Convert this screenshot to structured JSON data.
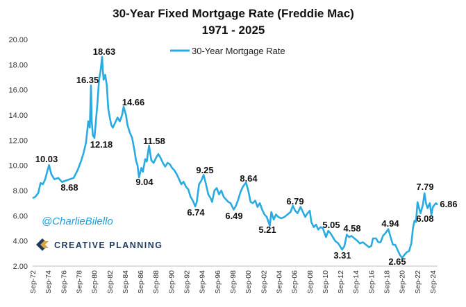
{
  "chart_data": {
    "type": "line",
    "title_line1": "30-Year Fixed Mortgage Rate (Freddie Mac)",
    "title_line2": "1971 - 2025",
    "ylim": [
      2,
      20
    ],
    "xlim": [
      1972.67,
      2025.3
    ],
    "y_ticks": [
      "2.00",
      "4.00",
      "6.00",
      "8.00",
      "10.00",
      "12.00",
      "14.00",
      "16.00",
      "18.00",
      "20.00"
    ],
    "x_ticks": [
      "Sep-72",
      "Sep-74",
      "Sep-76",
      "Sep-78",
      "Sep-80",
      "Sep-82",
      "Sep-84",
      "Sep-86",
      "Sep-88",
      "Sep-90",
      "Sep-92",
      "Sep-94",
      "Sep-96",
      "Sep-98",
      "Sep-00",
      "Sep-02",
      "Sep-04",
      "Sep-06",
      "Sep-08",
      "Sep-10",
      "Sep-12",
      "Sep-14",
      "Sep-16",
      "Sep-18",
      "Sep-20",
      "Sep-22",
      "Sep-24"
    ],
    "legend": "30-Year Mortgage Rate",
    "color": "#29ABE2",
    "series": [
      {
        "name": "30-Year Mortgage Rate",
        "x": [
          1972.67,
          1973.0,
          1973.4,
          1973.7,
          1974.0,
          1974.3,
          1974.6,
          1974.8,
          1975.1,
          1975.5,
          1976.0,
          1976.5,
          1977.0,
          1977.5,
          1978.0,
          1978.5,
          1979.0,
          1979.3,
          1979.6,
          1979.9,
          1980.1,
          1980.25,
          1980.35,
          1980.5,
          1980.7,
          1980.9,
          1981.1,
          1981.3,
          1981.5,
          1981.7,
          1981.8,
          1981.9,
          1982.1,
          1982.3,
          1982.5,
          1982.7,
          1982.9,
          1983.1,
          1983.4,
          1983.7,
          1984.0,
          1984.3,
          1984.5,
          1984.8,
          1985.0,
          1985.3,
          1985.6,
          1985.9,
          1986.1,
          1986.3,
          1986.5,
          1986.8,
          1987.0,
          1987.3,
          1987.5,
          1987.8,
          1988.1,
          1988.4,
          1988.7,
          1989.0,
          1989.3,
          1989.6,
          1989.9,
          1990.2,
          1990.5,
          1990.8,
          1991.1,
          1991.4,
          1991.7,
          1992.0,
          1992.3,
          1992.6,
          1992.9,
          1993.2,
          1993.5,
          1993.8,
          1994.0,
          1994.3,
          1994.6,
          1994.9,
          1995.2,
          1995.5,
          1995.8,
          1996.0,
          1996.3,
          1996.6,
          1996.9,
          1997.2,
          1997.5,
          1997.8,
          1998.1,
          1998.4,
          1998.8,
          1999.1,
          1999.4,
          1999.7,
          2000.0,
          2000.4,
          2000.7,
          2001.0,
          2001.3,
          2001.6,
          2001.9,
          2002.2,
          2002.5,
          2002.8,
          2003.1,
          2003.5,
          2003.7,
          2004.0,
          2004.3,
          2004.6,
          2005.0,
          2005.4,
          2005.8,
          2006.2,
          2006.5,
          2006.8,
          2007.1,
          2007.5,
          2007.8,
          2008.1,
          2008.4,
          2008.7,
          2008.9,
          2009.2,
          2009.5,
          2009.8,
          2010.1,
          2010.4,
          2010.8,
          2011.1,
          2011.4,
          2011.7,
          2012.0,
          2012.4,
          2012.9,
          2013.2,
          2013.5,
          2013.8,
          2014.1,
          2014.5,
          2014.9,
          2015.2,
          2015.6,
          2016.0,
          2016.4,
          2016.7,
          2016.9,
          2017.3,
          2017.6,
          2017.9,
          2018.2,
          2018.5,
          2018.9,
          2019.2,
          2019.5,
          2019.8,
          2020.1,
          2020.4,
          2020.7,
          2021.0,
          2021.3,
          2021.6,
          2021.9,
          2022.1,
          2022.3,
          2022.5,
          2022.7,
          2022.9,
          2023.1,
          2023.4,
          2023.6,
          2023.8,
          2024.0,
          2024.3,
          2024.5,
          2024.7,
          2024.9,
          2025.1,
          2025.3
        ],
        "y": [
          7.4,
          7.5,
          7.8,
          8.6,
          8.5,
          8.9,
          9.6,
          10.03,
          9.3,
          8.9,
          9.0,
          8.68,
          8.8,
          8.9,
          9.0,
          9.6,
          10.4,
          11.0,
          11.8,
          13.5,
          13.0,
          16.35,
          13.5,
          12.4,
          12.18,
          13.6,
          15.0,
          16.8,
          17.5,
          18.63,
          17.5,
          16.8,
          17.2,
          16.4,
          14.5,
          13.8,
          13.2,
          13.0,
          13.4,
          13.8,
          13.5,
          14.0,
          14.66,
          14.0,
          13.2,
          12.6,
          12.2,
          11.2,
          10.4,
          10.0,
          9.04,
          9.8,
          9.5,
          10.5,
          10.3,
          11.58,
          10.4,
          10.2,
          10.6,
          10.9,
          10.6,
          10.2,
          9.9,
          10.2,
          10.1,
          9.8,
          9.6,
          9.3,
          8.9,
          8.5,
          8.7,
          8.3,
          8.1,
          7.5,
          7.2,
          6.74,
          7.1,
          8.5,
          8.8,
          9.25,
          8.5,
          7.7,
          7.4,
          7.1,
          8.0,
          8.2,
          7.7,
          8.0,
          7.5,
          7.3,
          7.1,
          7.0,
          6.49,
          6.8,
          7.3,
          7.9,
          8.3,
          8.64,
          8.0,
          7.1,
          7.0,
          7.2,
          6.7,
          7.0,
          6.5,
          6.1,
          5.9,
          5.21,
          6.3,
          5.7,
          6.1,
          5.9,
          5.8,
          5.9,
          6.1,
          6.3,
          6.79,
          6.4,
          6.2,
          6.7,
          6.3,
          5.9,
          6.2,
          6.4,
          5.5,
          5.1,
          5.3,
          4.9,
          5.1,
          5.0,
          4.3,
          4.8,
          4.6,
          4.3,
          4.0,
          3.8,
          3.31,
          3.6,
          4.5,
          4.3,
          4.4,
          4.2,
          4.0,
          3.8,
          3.9,
          3.7,
          3.5,
          3.6,
          4.2,
          4.2,
          3.9,
          3.9,
          4.4,
          4.6,
          4.94,
          4.3,
          3.7,
          3.7,
          3.3,
          2.9,
          2.65,
          2.9,
          3.1,
          3.2,
          3.8,
          5.0,
          5.6,
          5.5,
          7.08,
          6.6,
          6.2,
          6.9,
          7.79,
          7.0,
          6.6,
          7.0,
          6.08,
          6.7,
          6.86,
          7.0,
          6.86
        ]
      }
    ],
    "annotations": [
      {
        "label": "18.63"
      },
      {
        "label": "16.35"
      },
      {
        "label": "14.66"
      },
      {
        "label": "12.18"
      },
      {
        "label": "11.58"
      },
      {
        "label": "10.03"
      },
      {
        "label": "9.25"
      },
      {
        "label": "9.04"
      },
      {
        "label": "8.68"
      },
      {
        "label": "8.64"
      },
      {
        "label": "7.79"
      },
      {
        "label": "6.86"
      },
      {
        "label": "6.79"
      },
      {
        "label": "6.74"
      },
      {
        "label": "6.49"
      },
      {
        "label": "6.08"
      },
      {
        "label": "5.21"
      },
      {
        "label": "5.05"
      },
      {
        "label": "4.94"
      },
      {
        "label": "4.58"
      },
      {
        "label": "3.31"
      },
      {
        "label": "2.65"
      }
    ]
  },
  "watermark": {
    "handle": "@CharlieBilello",
    "brand": "CREATIVE PLANNING"
  }
}
